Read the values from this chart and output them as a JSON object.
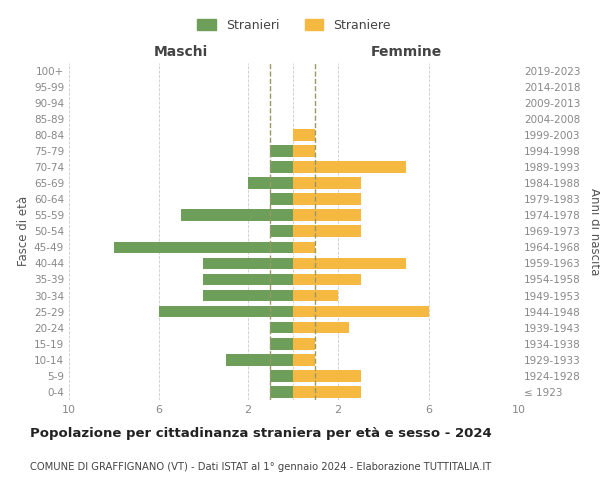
{
  "age_groups": [
    "100+",
    "95-99",
    "90-94",
    "85-89",
    "80-84",
    "75-79",
    "70-74",
    "65-69",
    "60-64",
    "55-59",
    "50-54",
    "45-49",
    "40-44",
    "35-39",
    "30-34",
    "25-29",
    "20-24",
    "15-19",
    "10-14",
    "5-9",
    "0-4"
  ],
  "birth_years": [
    "≤ 1923",
    "1924-1928",
    "1929-1933",
    "1934-1938",
    "1939-1943",
    "1944-1948",
    "1949-1953",
    "1954-1958",
    "1959-1963",
    "1964-1968",
    "1969-1973",
    "1974-1978",
    "1979-1983",
    "1984-1988",
    "1989-1993",
    "1994-1998",
    "1999-2003",
    "2004-2008",
    "2009-2013",
    "2014-2018",
    "2019-2023"
  ],
  "males": [
    0,
    0,
    0,
    0,
    0,
    1,
    1,
    2,
    1,
    5,
    1,
    8,
    4,
    4,
    4,
    6,
    1,
    1,
    3,
    1,
    1
  ],
  "females": [
    0,
    0,
    0,
    0,
    1,
    1,
    5,
    3,
    3,
    3,
    3,
    1,
    5,
    3,
    2,
    6,
    2.5,
    1,
    1,
    3,
    3
  ],
  "male_color": "#6d9e5a",
  "female_color": "#f5b942",
  "grid_color": "#cccccc",
  "text_color": "#888888",
  "title": "Popolazione per cittadinanza straniera per età e sesso - 2024",
  "subtitle": "COMUNE DI GRAFFIGNANO (VT) - Dati ISTAT al 1° gennaio 2024 - Elaborazione TUTTITALIA.IT",
  "legend_male": "Stranieri",
  "legend_female": "Straniere",
  "xlabel_left": "Maschi",
  "xlabel_right": "Femmine",
  "ylabel_left": "Fasce di età",
  "ylabel_right": "Anni di nascita",
  "xlim": 10,
  "background_color": "#ffffff",
  "center_line_color": "#999966"
}
